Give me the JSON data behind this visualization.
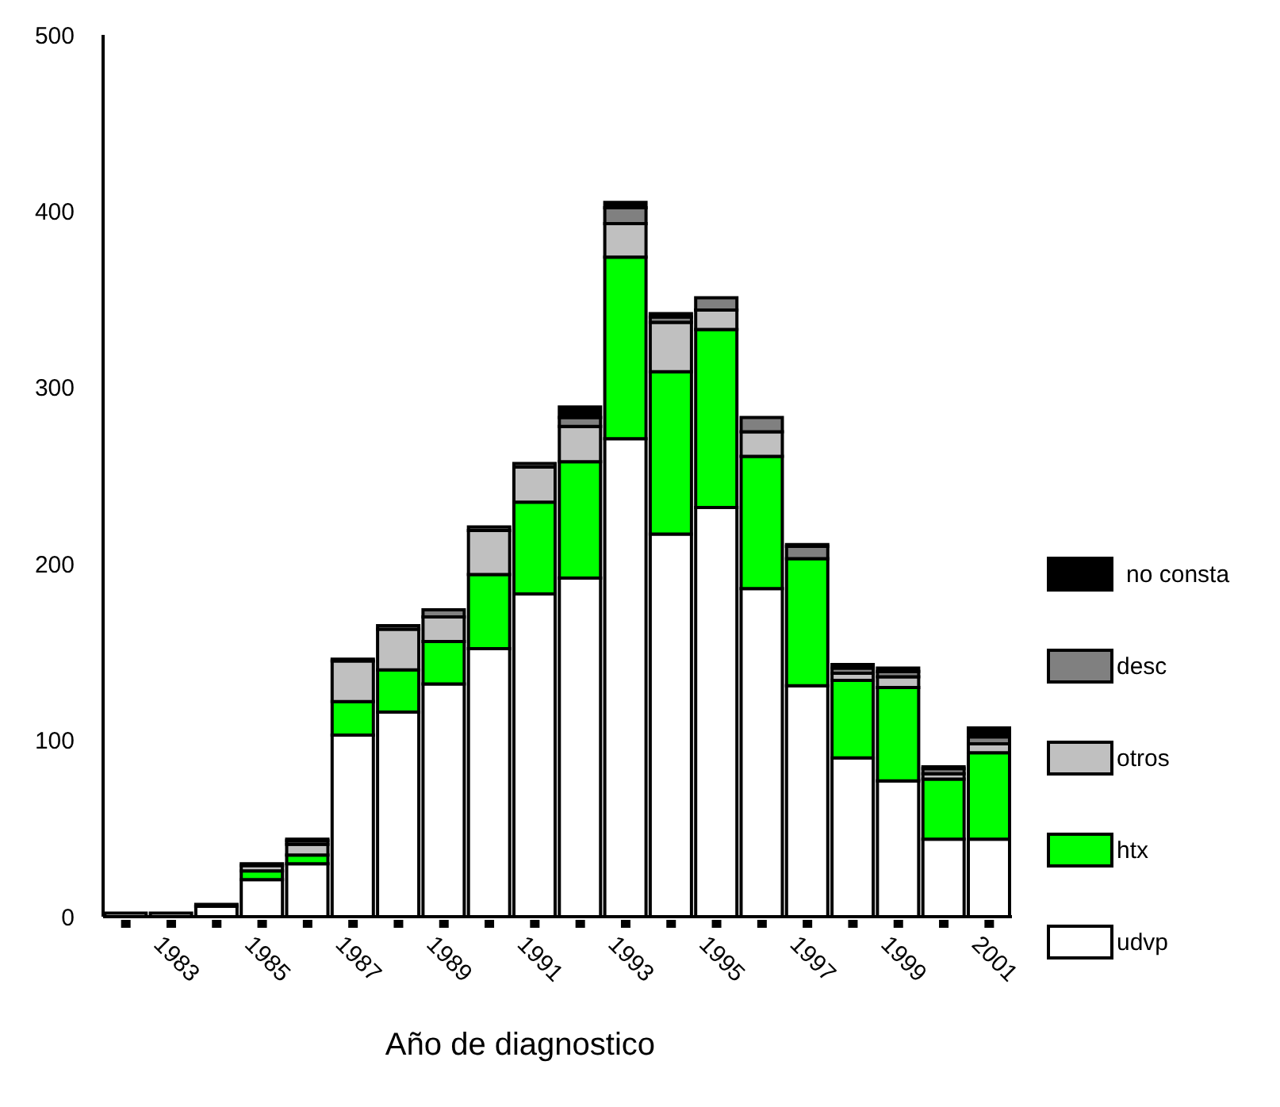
{
  "chart_data": {
    "type": "bar",
    "stacked": true,
    "xlabel": "Año de diagnostico",
    "categories": [
      null,
      "1983",
      null,
      "1985",
      null,
      "1987",
      null,
      "1989",
      null,
      "1991",
      null,
      "1993",
      null,
      "1995",
      null,
      "1997",
      null,
      "1999",
      null,
      "2001"
    ],
    "series": [
      {
        "name": "udvp",
        "color": "#ffffff",
        "values": [
          2,
          2,
          6,
          21,
          30,
          103,
          116,
          132,
          152,
          183,
          192,
          271,
          217,
          232,
          186,
          131,
          90,
          77,
          44,
          44
        ]
      },
      {
        "name": "htx",
        "color": "#00ff00",
        "values": [
          0,
          0,
          0,
          5,
          5,
          19,
          24,
          24,
          42,
          52,
          66,
          103,
          92,
          101,
          75,
          72,
          44,
          53,
          34,
          49
        ]
      },
      {
        "name": "otros",
        "color": "#c0c0c0",
        "values": [
          0,
          0,
          0,
          3,
          6,
          23,
          23,
          14,
          25,
          20,
          20,
          19,
          28,
          11,
          14,
          0,
          4,
          6,
          3,
          5
        ]
      },
      {
        "name": "desc",
        "color": "#808080",
        "values": [
          0,
          0,
          1,
          1,
          2,
          1,
          2,
          4,
          2,
          2,
          5,
          9,
          3,
          7,
          8,
          7,
          3,
          3,
          3,
          4
        ]
      },
      {
        "name": "no consta",
        "color": "#000000",
        "values": [
          0,
          0,
          0,
          0,
          1,
          0,
          0,
          0,
          0,
          0,
          6,
          3,
          2,
          0,
          0,
          1,
          2,
          2,
          1,
          5
        ]
      }
    ],
    "ylim": [
      0,
      500
    ],
    "yticks": [
      0,
      100,
      200,
      300,
      400,
      500
    ],
    "grid": false,
    "legend": "right"
  }
}
